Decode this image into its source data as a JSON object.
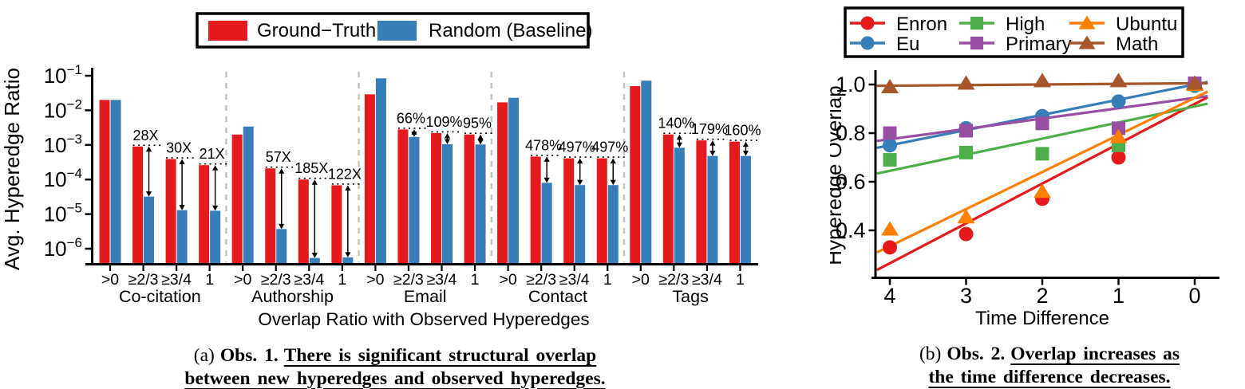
{
  "captions": {
    "a": {
      "prefix": "(a)",
      "obs": "Obs. 1.",
      "line1": "There is significant structural overlap",
      "line2": "between new hyperedges and observed hyperedges."
    },
    "b": {
      "prefix": "(b)",
      "obs": "Obs. 2.",
      "line1": "Overlap increases as",
      "line2": "the time difference decreases."
    }
  },
  "chart_data": [
    {
      "type": "bar",
      "yscale": "log",
      "ylabel": "Avg. Hyperedge Ratio",
      "xlabel": "Overlap Ratio with Observed Hyperedges",
      "ytick_exponents": [
        -1,
        -2,
        -3,
        -4,
        -5,
        -6
      ],
      "categories": [
        ">0",
        "≥2/3",
        "≥3/4",
        "1"
      ],
      "legend": [
        {
          "label": "Ground−Truth",
          "color": "#e41a1c"
        },
        {
          "label": "Random (Baseline)",
          "color": "#377eb8"
        }
      ],
      "groups": [
        {
          "name": "Co-citation",
          "ground_truth": [
            0.02,
            0.0009,
            0.00039,
            0.00026
          ],
          "random": [
            0.02,
            3.2e-05,
            1.3e-05,
            1.25e-05
          ],
          "annotations": [
            "",
            "28X",
            "30X",
            "21X"
          ]
        },
        {
          "name": "Authorship",
          "ground_truth": [
            0.002,
            0.00021,
            0.0001,
            6.8e-05
          ],
          "random": [
            0.0034,
            3.7e-06,
            5.4e-07,
            5.6e-07
          ],
          "annotations": [
            "",
            "57X",
            "185X",
            "122X"
          ]
        },
        {
          "name": "Email",
          "ground_truth": [
            0.029,
            0.0028,
            0.0022,
            0.002
          ],
          "random": [
            0.084,
            0.0017,
            0.00105,
            0.00103
          ],
          "annotations": [
            "",
            "66%",
            "109%",
            "95%"
          ]
        },
        {
          "name": "Contact",
          "ground_truth": [
            0.017,
            0.00046,
            0.00041,
            0.00041
          ],
          "random": [
            0.023,
            8e-05,
            6.9e-05,
            6.9e-05
          ],
          "annotations": [
            "",
            "478%",
            "497%",
            "497%"
          ]
        },
        {
          "name": "Tags",
          "ground_truth": [
            0.05,
            0.002,
            0.00135,
            0.00125
          ],
          "random": [
            0.072,
            0.00083,
            0.00048,
            0.00048
          ],
          "annotations": [
            "",
            "140%",
            "179%",
            "160%"
          ]
        }
      ]
    },
    {
      "type": "scatter",
      "ylabel": "Hyperedge Overlap",
      "xlabel": "Time Difference",
      "x": [
        4,
        3,
        2,
        1,
        0
      ],
      "x_reversed": true,
      "ylim": [
        0.2,
        1.05
      ],
      "yticks": [
        1.0,
        0.8,
        0.6,
        0.4
      ],
      "series": [
        {
          "name": "Enron",
          "color": "#e41a1c",
          "marker": "circle",
          "values": [
            0.33,
            0.385,
            0.53,
            0.7,
            1.0
          ],
          "trend_at_x4": 0.265,
          "trend_at_x0": 0.92
        },
        {
          "name": "Eu",
          "color": "#377eb8",
          "marker": "circle",
          "values": [
            0.75,
            0.82,
            0.87,
            0.93,
            0.995
          ],
          "trend_at_x4": 0.75,
          "trend_at_x0": 1.0
        },
        {
          "name": "High",
          "color": "#4daf4a",
          "marker": "square",
          "values": [
            0.69,
            0.72,
            0.715,
            0.75,
            1.0
          ],
          "trend_at_x4": 0.645,
          "trend_at_x0": 0.91
        },
        {
          "name": "Primary",
          "color": "#984ea3",
          "marker": "square",
          "values": [
            0.8,
            0.81,
            0.84,
            0.82,
            1.005
          ],
          "trend_at_x4": 0.775,
          "trend_at_x0": 0.945
        },
        {
          "name": "Ubuntu",
          "color": "#ff7f00",
          "marker": "triangle",
          "values": [
            0.405,
            0.455,
            0.56,
            0.785,
            1.0
          ],
          "trend_at_x4": 0.335,
          "trend_at_x0": 0.945
        },
        {
          "name": "Math",
          "color": "#a65628",
          "marker": "triangle",
          "values": [
            0.99,
            1.005,
            1.015,
            1.015,
            1.005
          ],
          "trend_at_x4": 0.995,
          "trend_at_x0": 1.005
        }
      ]
    }
  ]
}
